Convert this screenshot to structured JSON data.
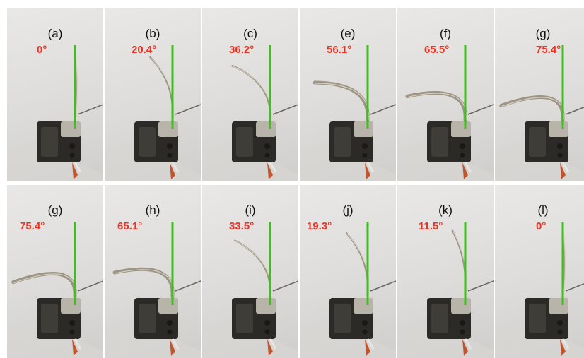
{
  "panels": [
    {
      "label": "(a)",
      "angle_text": "0°",
      "angle_deg": 0
    },
    {
      "label": "(b)",
      "angle_text": "20.4°",
      "angle_deg": 20.4
    },
    {
      "label": "(c)",
      "angle_text": "36.2°",
      "angle_deg": 36.2
    },
    {
      "label": "(e)",
      "angle_text": "56.1°",
      "angle_deg": 56.1
    },
    {
      "label": "(f)",
      "angle_text": "65.5°",
      "angle_deg": 65.5
    },
    {
      "label": "(g)",
      "angle_text": "75.4°",
      "angle_deg": 75.4
    },
    {
      "label": "(g)",
      "angle_text": "75.4°",
      "angle_deg": 75.4
    },
    {
      "label": "(h)",
      "angle_text": "65.1°",
      "angle_deg": 65.1
    },
    {
      "label": "(i)",
      "angle_text": "33.5°",
      "angle_deg": 33.5
    },
    {
      "label": "(j)",
      "angle_text": "19.3°",
      "angle_deg": 19.3
    },
    {
      "label": "(k)",
      "angle_text": "11.5°",
      "angle_deg": 11.5
    },
    {
      "label": "(l)",
      "angle_text": "0°",
      "angle_deg": 0
    }
  ],
  "colors": {
    "angle_text": "#f03222",
    "reference_line": "#3fbf1f",
    "label_text": "#111111",
    "background": "#e3e2e0"
  }
}
